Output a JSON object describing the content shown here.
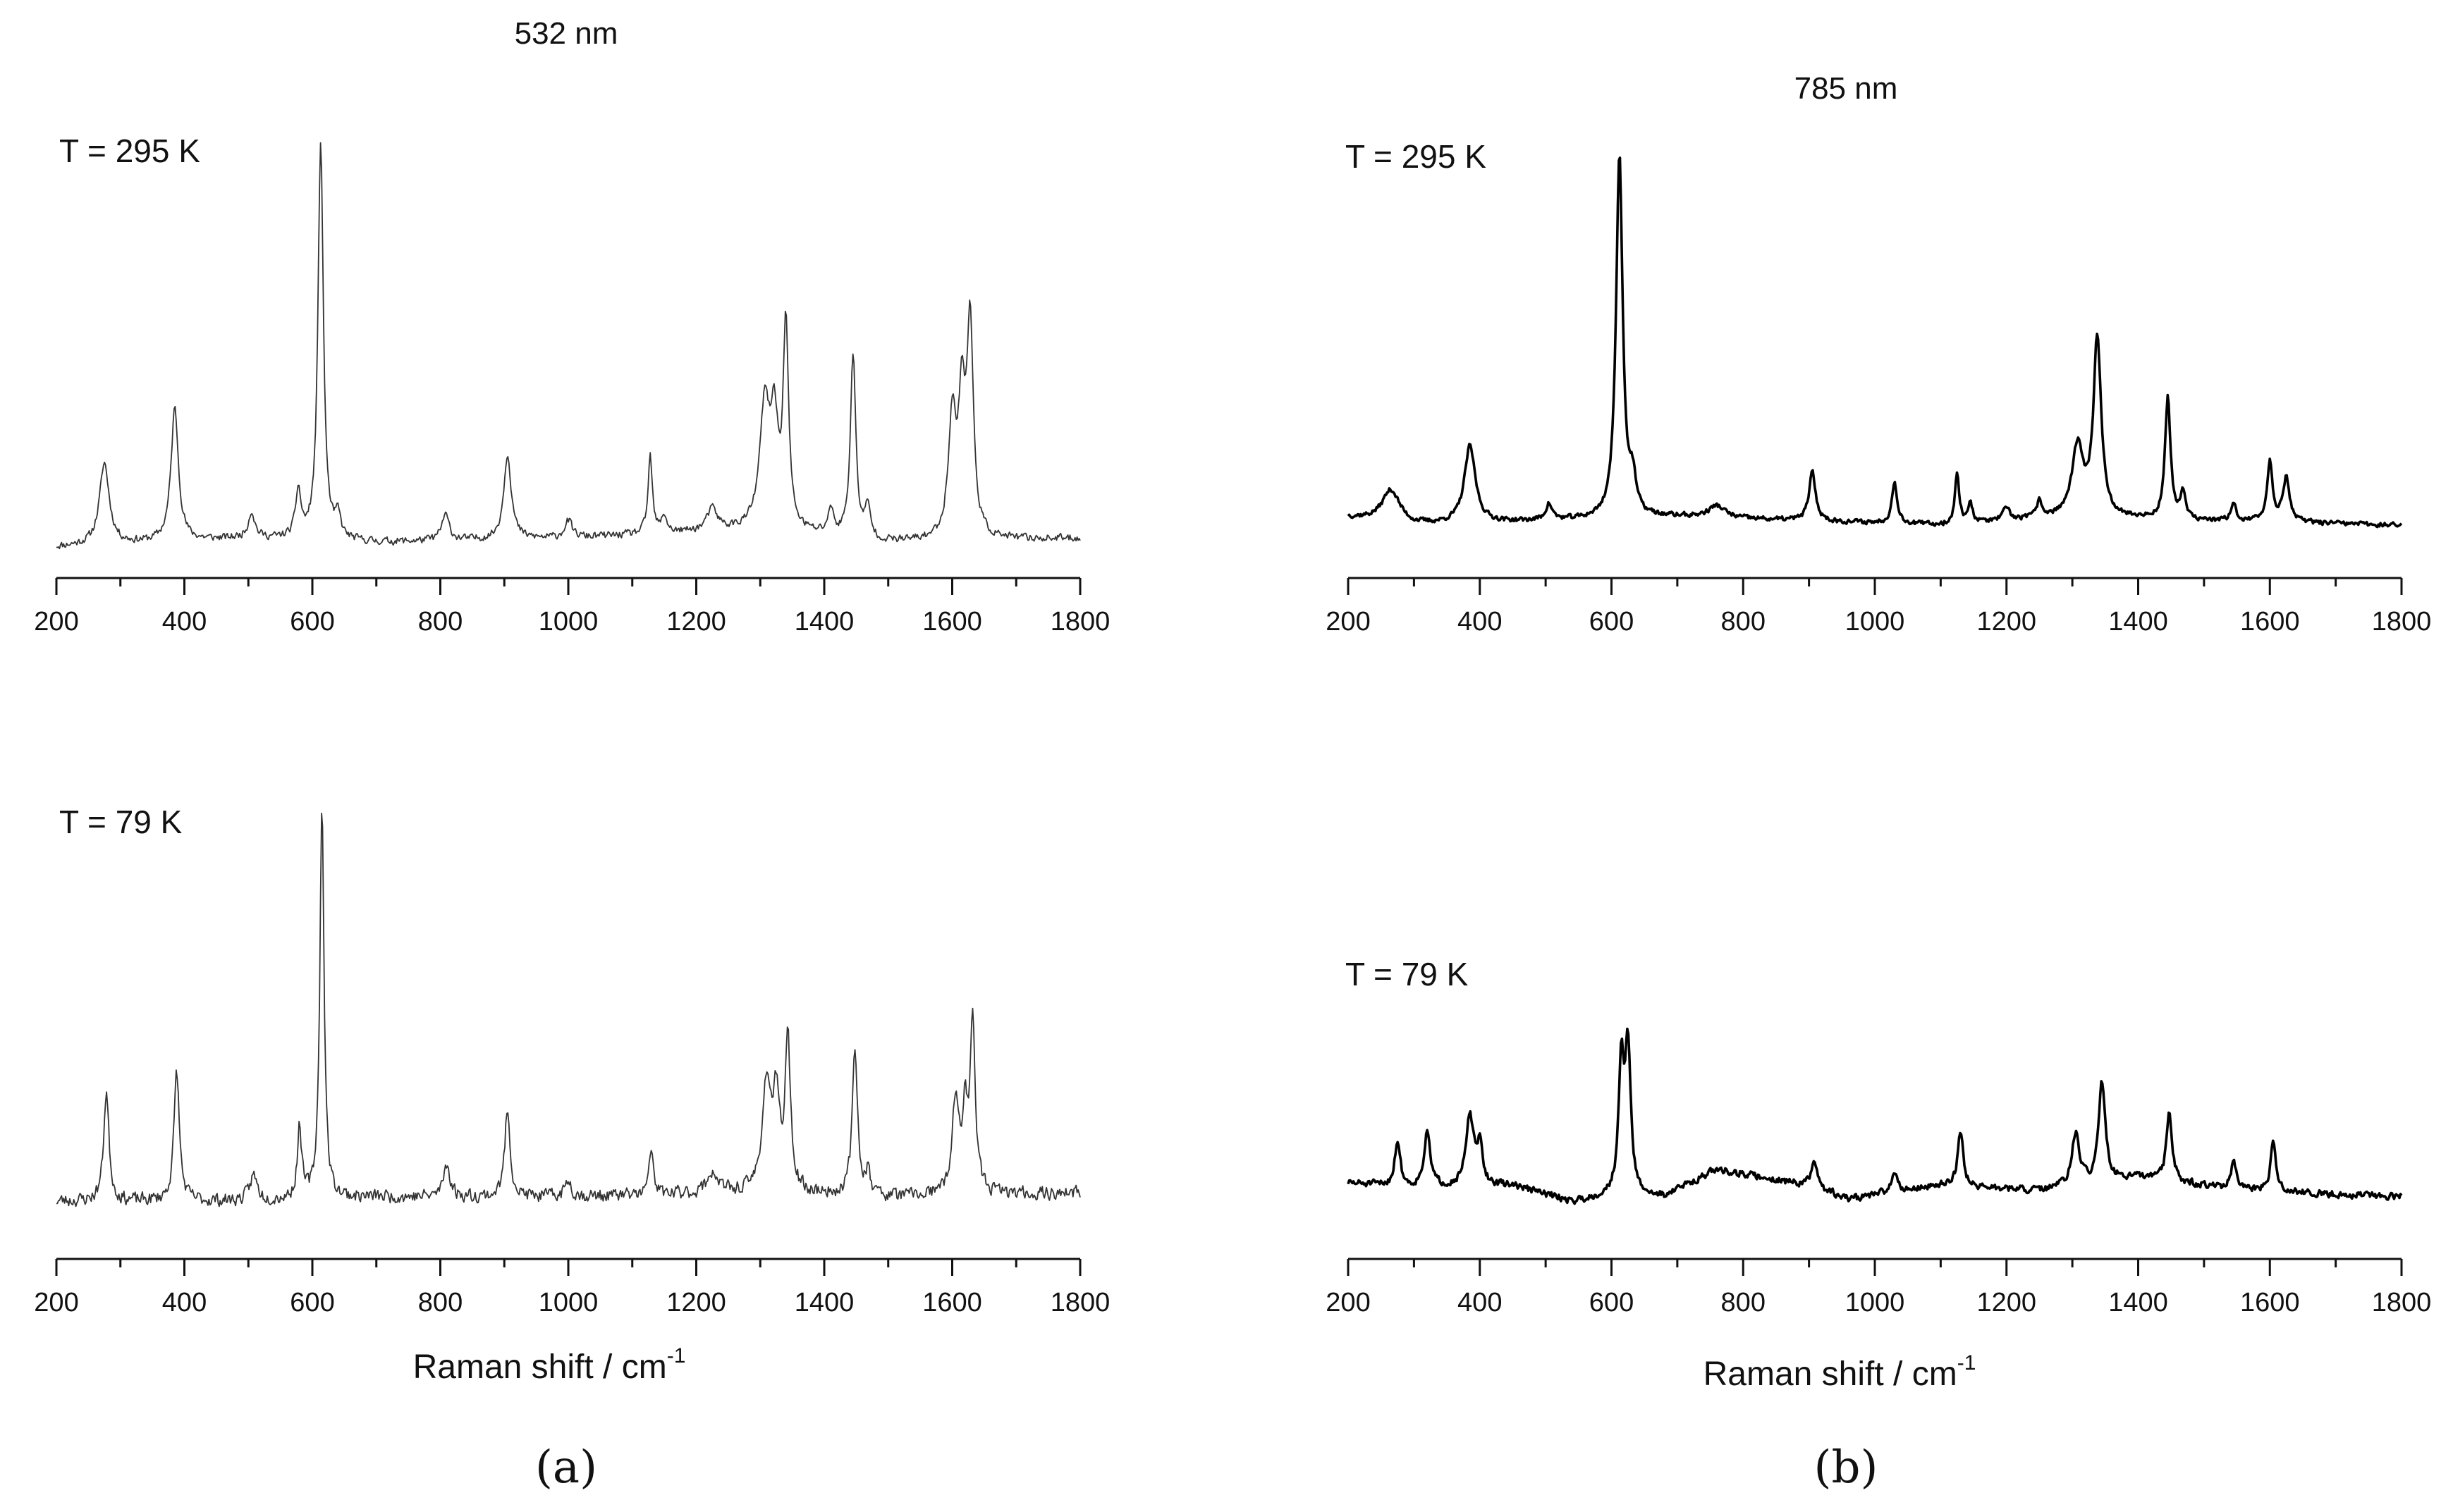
{
  "figure": {
    "panel_a_label": "(a)",
    "panel_b_label": "(b)"
  },
  "chart_data": [
    {
      "id": "a-295",
      "type": "line",
      "panel": "a",
      "title": "532 nm",
      "annotation": "T = 295 K",
      "xlabel": "",
      "xlim": [
        200,
        1800
      ],
      "xticks": [
        200,
        400,
        600,
        800,
        1000,
        1200,
        1400,
        1600,
        1800
      ],
      "ylabel": "",
      "ylim": [
        0,
        1.0
      ],
      "baseline": [
        [
          200,
          0.02
        ],
        [
          500,
          0.04
        ],
        [
          700,
          0.03
        ],
        [
          1000,
          0.04
        ],
        [
          1300,
          0.06
        ],
        [
          1500,
          0.03
        ],
        [
          1800,
          0.04
        ]
      ],
      "peaks": [
        {
          "x": 275,
          "h": 0.19,
          "w": 9
        },
        {
          "x": 385,
          "h": 0.31,
          "w": 7
        },
        {
          "x": 505,
          "h": 0.06,
          "w": 6
        },
        {
          "x": 578,
          "h": 0.11,
          "w": 5
        },
        {
          "x": 613,
          "h": 0.93,
          "w": 5
        },
        {
          "x": 640,
          "h": 0.05,
          "w": 5
        },
        {
          "x": 808,
          "h": 0.06,
          "w": 7
        },
        {
          "x": 905,
          "h": 0.2,
          "w": 7
        },
        {
          "x": 1000,
          "h": 0.04,
          "w": 7
        },
        {
          "x": 1128,
          "h": 0.18,
          "w": 4
        },
        {
          "x": 1150,
          "h": 0.04,
          "w": 5
        },
        {
          "x": 1225,
          "h": 0.05,
          "w": 10
        },
        {
          "x": 1307,
          "h": 0.28,
          "w": 9
        },
        {
          "x": 1322,
          "h": 0.23,
          "w": 7
        },
        {
          "x": 1340,
          "h": 0.47,
          "w": 5
        },
        {
          "x": 1410,
          "h": 0.06,
          "w": 5
        },
        {
          "x": 1445,
          "h": 0.43,
          "w": 5
        },
        {
          "x": 1468,
          "h": 0.07,
          "w": 5
        },
        {
          "x": 1600,
          "h": 0.28,
          "w": 7
        },
        {
          "x": 1615,
          "h": 0.3,
          "w": 6
        },
        {
          "x": 1628,
          "h": 0.49,
          "w": 6
        }
      ],
      "noise": 0.012,
      "seed": 11,
      "stroke": "#333333",
      "stroke_width": 1.8
    },
    {
      "id": "a-79",
      "type": "line",
      "panel": "a",
      "title": "",
      "annotation": "T = 79 K",
      "xlabel": "Raman shift / cm",
      "xlabel_sup": "-1",
      "xlim": [
        200,
        1800
      ],
      "xticks": [
        200,
        400,
        600,
        800,
        1000,
        1200,
        1400,
        1600,
        1800
      ],
      "ylabel": "",
      "ylim": [
        0,
        1.0
      ],
      "baseline": [
        [
          200,
          0.04
        ],
        [
          500,
          0.04
        ],
        [
          700,
          0.05
        ],
        [
          1000,
          0.05
        ],
        [
          1300,
          0.06
        ],
        [
          1500,
          0.05
        ],
        [
          1800,
          0.06
        ]
      ],
      "peaks": [
        {
          "x": 278,
          "h": 0.26,
          "w": 5
        },
        {
          "x": 388,
          "h": 0.31,
          "w": 5
        },
        {
          "x": 508,
          "h": 0.06,
          "w": 7
        },
        {
          "x": 580,
          "h": 0.17,
          "w": 4
        },
        {
          "x": 615,
          "h": 0.93,
          "w": 4
        },
        {
          "x": 810,
          "h": 0.08,
          "w": 6
        },
        {
          "x": 905,
          "h": 0.21,
          "w": 5
        },
        {
          "x": 1000,
          "h": 0.04,
          "w": 6
        },
        {
          "x": 1130,
          "h": 0.11,
          "w": 4
        },
        {
          "x": 1225,
          "h": 0.05,
          "w": 10
        },
        {
          "x": 1310,
          "h": 0.26,
          "w": 8
        },
        {
          "x": 1325,
          "h": 0.2,
          "w": 6
        },
        {
          "x": 1343,
          "h": 0.36,
          "w": 5
        },
        {
          "x": 1448,
          "h": 0.34,
          "w": 5
        },
        {
          "x": 1468,
          "h": 0.05,
          "w": 5
        },
        {
          "x": 1605,
          "h": 0.22,
          "w": 6
        },
        {
          "x": 1620,
          "h": 0.18,
          "w": 5
        },
        {
          "x": 1632,
          "h": 0.39,
          "w": 5
        }
      ],
      "noise": 0.022,
      "seed": 23,
      "stroke": "#333333",
      "stroke_width": 1.8
    },
    {
      "id": "b-295",
      "type": "line",
      "panel": "b",
      "title": "785 nm",
      "annotation": "T = 295 K",
      "xlabel": "",
      "xlim": [
        200,
        1800
      ],
      "xticks": [
        200,
        400,
        600,
        800,
        1000,
        1200,
        1400,
        1600,
        1800
      ],
      "ylabel": "",
      "ylim": [
        0,
        1.0
      ],
      "baseline": [
        [
          200,
          0.06
        ],
        [
          300,
          0.04
        ],
        [
          500,
          0.05
        ],
        [
          700,
          0.06
        ],
        [
          900,
          0.05
        ],
        [
          1100,
          0.04
        ],
        [
          1300,
          0.06
        ],
        [
          1500,
          0.05
        ],
        [
          1800,
          0.04
        ]
      ],
      "peaks": [
        {
          "x": 265,
          "h": 0.08,
          "w": 16
        },
        {
          "x": 385,
          "h": 0.19,
          "w": 10
        },
        {
          "x": 505,
          "h": 0.04,
          "w": 6
        },
        {
          "x": 612,
          "h": 0.9,
          "w": 6
        },
        {
          "x": 632,
          "h": 0.08,
          "w": 6
        },
        {
          "x": 760,
          "h": 0.03,
          "w": 15
        },
        {
          "x": 905,
          "h": 0.12,
          "w": 6
        },
        {
          "x": 1030,
          "h": 0.1,
          "w": 5
        },
        {
          "x": 1125,
          "h": 0.12,
          "w": 4
        },
        {
          "x": 1145,
          "h": 0.05,
          "w": 4
        },
        {
          "x": 1200,
          "h": 0.03,
          "w": 6
        },
        {
          "x": 1250,
          "h": 0.04,
          "w": 5
        },
        {
          "x": 1308,
          "h": 0.17,
          "w": 10
        },
        {
          "x": 1338,
          "h": 0.44,
          "w": 7
        },
        {
          "x": 1445,
          "h": 0.3,
          "w": 5
        },
        {
          "x": 1468,
          "h": 0.07,
          "w": 4
        },
        {
          "x": 1545,
          "h": 0.05,
          "w": 4
        },
        {
          "x": 1600,
          "h": 0.15,
          "w": 5
        },
        {
          "x": 1625,
          "h": 0.11,
          "w": 6
        }
      ],
      "noise": 0.008,
      "seed": 37,
      "stroke": "#000000",
      "stroke_width": 3.6
    },
    {
      "id": "b-79",
      "type": "line",
      "panel": "b",
      "title": "",
      "annotation": "T = 79 K",
      "xlabel": "Raman shift / cm",
      "xlabel_sup": "-1",
      "xlim": [
        200,
        1800
      ],
      "xticks": [
        200,
        400,
        600,
        800,
        1000,
        1200,
        1400,
        1600,
        1800
      ],
      "ylabel": "",
      "ylim": [
        0,
        1.0
      ],
      "baseline": [
        [
          200,
          0.11
        ],
        [
          300,
          0.09
        ],
        [
          450,
          0.1
        ],
        [
          540,
          0.04
        ],
        [
          600,
          0.06
        ],
        [
          680,
          0.06
        ],
        [
          760,
          0.16
        ],
        [
          900,
          0.1
        ],
        [
          960,
          0.05
        ],
        [
          1100,
          0.1
        ],
        [
          1250,
          0.08
        ],
        [
          1400,
          0.13
        ],
        [
          1500,
          0.1
        ],
        [
          1560,
          0.08
        ],
        [
          1800,
          0.06
        ]
      ],
      "peaks": [
        {
          "x": 275,
          "h": 0.17,
          "w": 5
        },
        {
          "x": 320,
          "h": 0.2,
          "w": 6
        },
        {
          "x": 385,
          "h": 0.26,
          "w": 7
        },
        {
          "x": 400,
          "h": 0.14,
          "w": 5
        },
        {
          "x": 615,
          "h": 0.47,
          "w": 5
        },
        {
          "x": 625,
          "h": 0.54,
          "w": 5
        },
        {
          "x": 908,
          "h": 0.1,
          "w": 5
        },
        {
          "x": 1030,
          "h": 0.07,
          "w": 6
        },
        {
          "x": 1130,
          "h": 0.21,
          "w": 5
        },
        {
          "x": 1305,
          "h": 0.19,
          "w": 7
        },
        {
          "x": 1345,
          "h": 0.37,
          "w": 6
        },
        {
          "x": 1447,
          "h": 0.26,
          "w": 5
        },
        {
          "x": 1545,
          "h": 0.1,
          "w": 5
        },
        {
          "x": 1605,
          "h": 0.18,
          "w": 5
        }
      ],
      "noise": 0.018,
      "seed": 51,
      "stroke": "#000000",
      "stroke_width": 3.6
    }
  ]
}
